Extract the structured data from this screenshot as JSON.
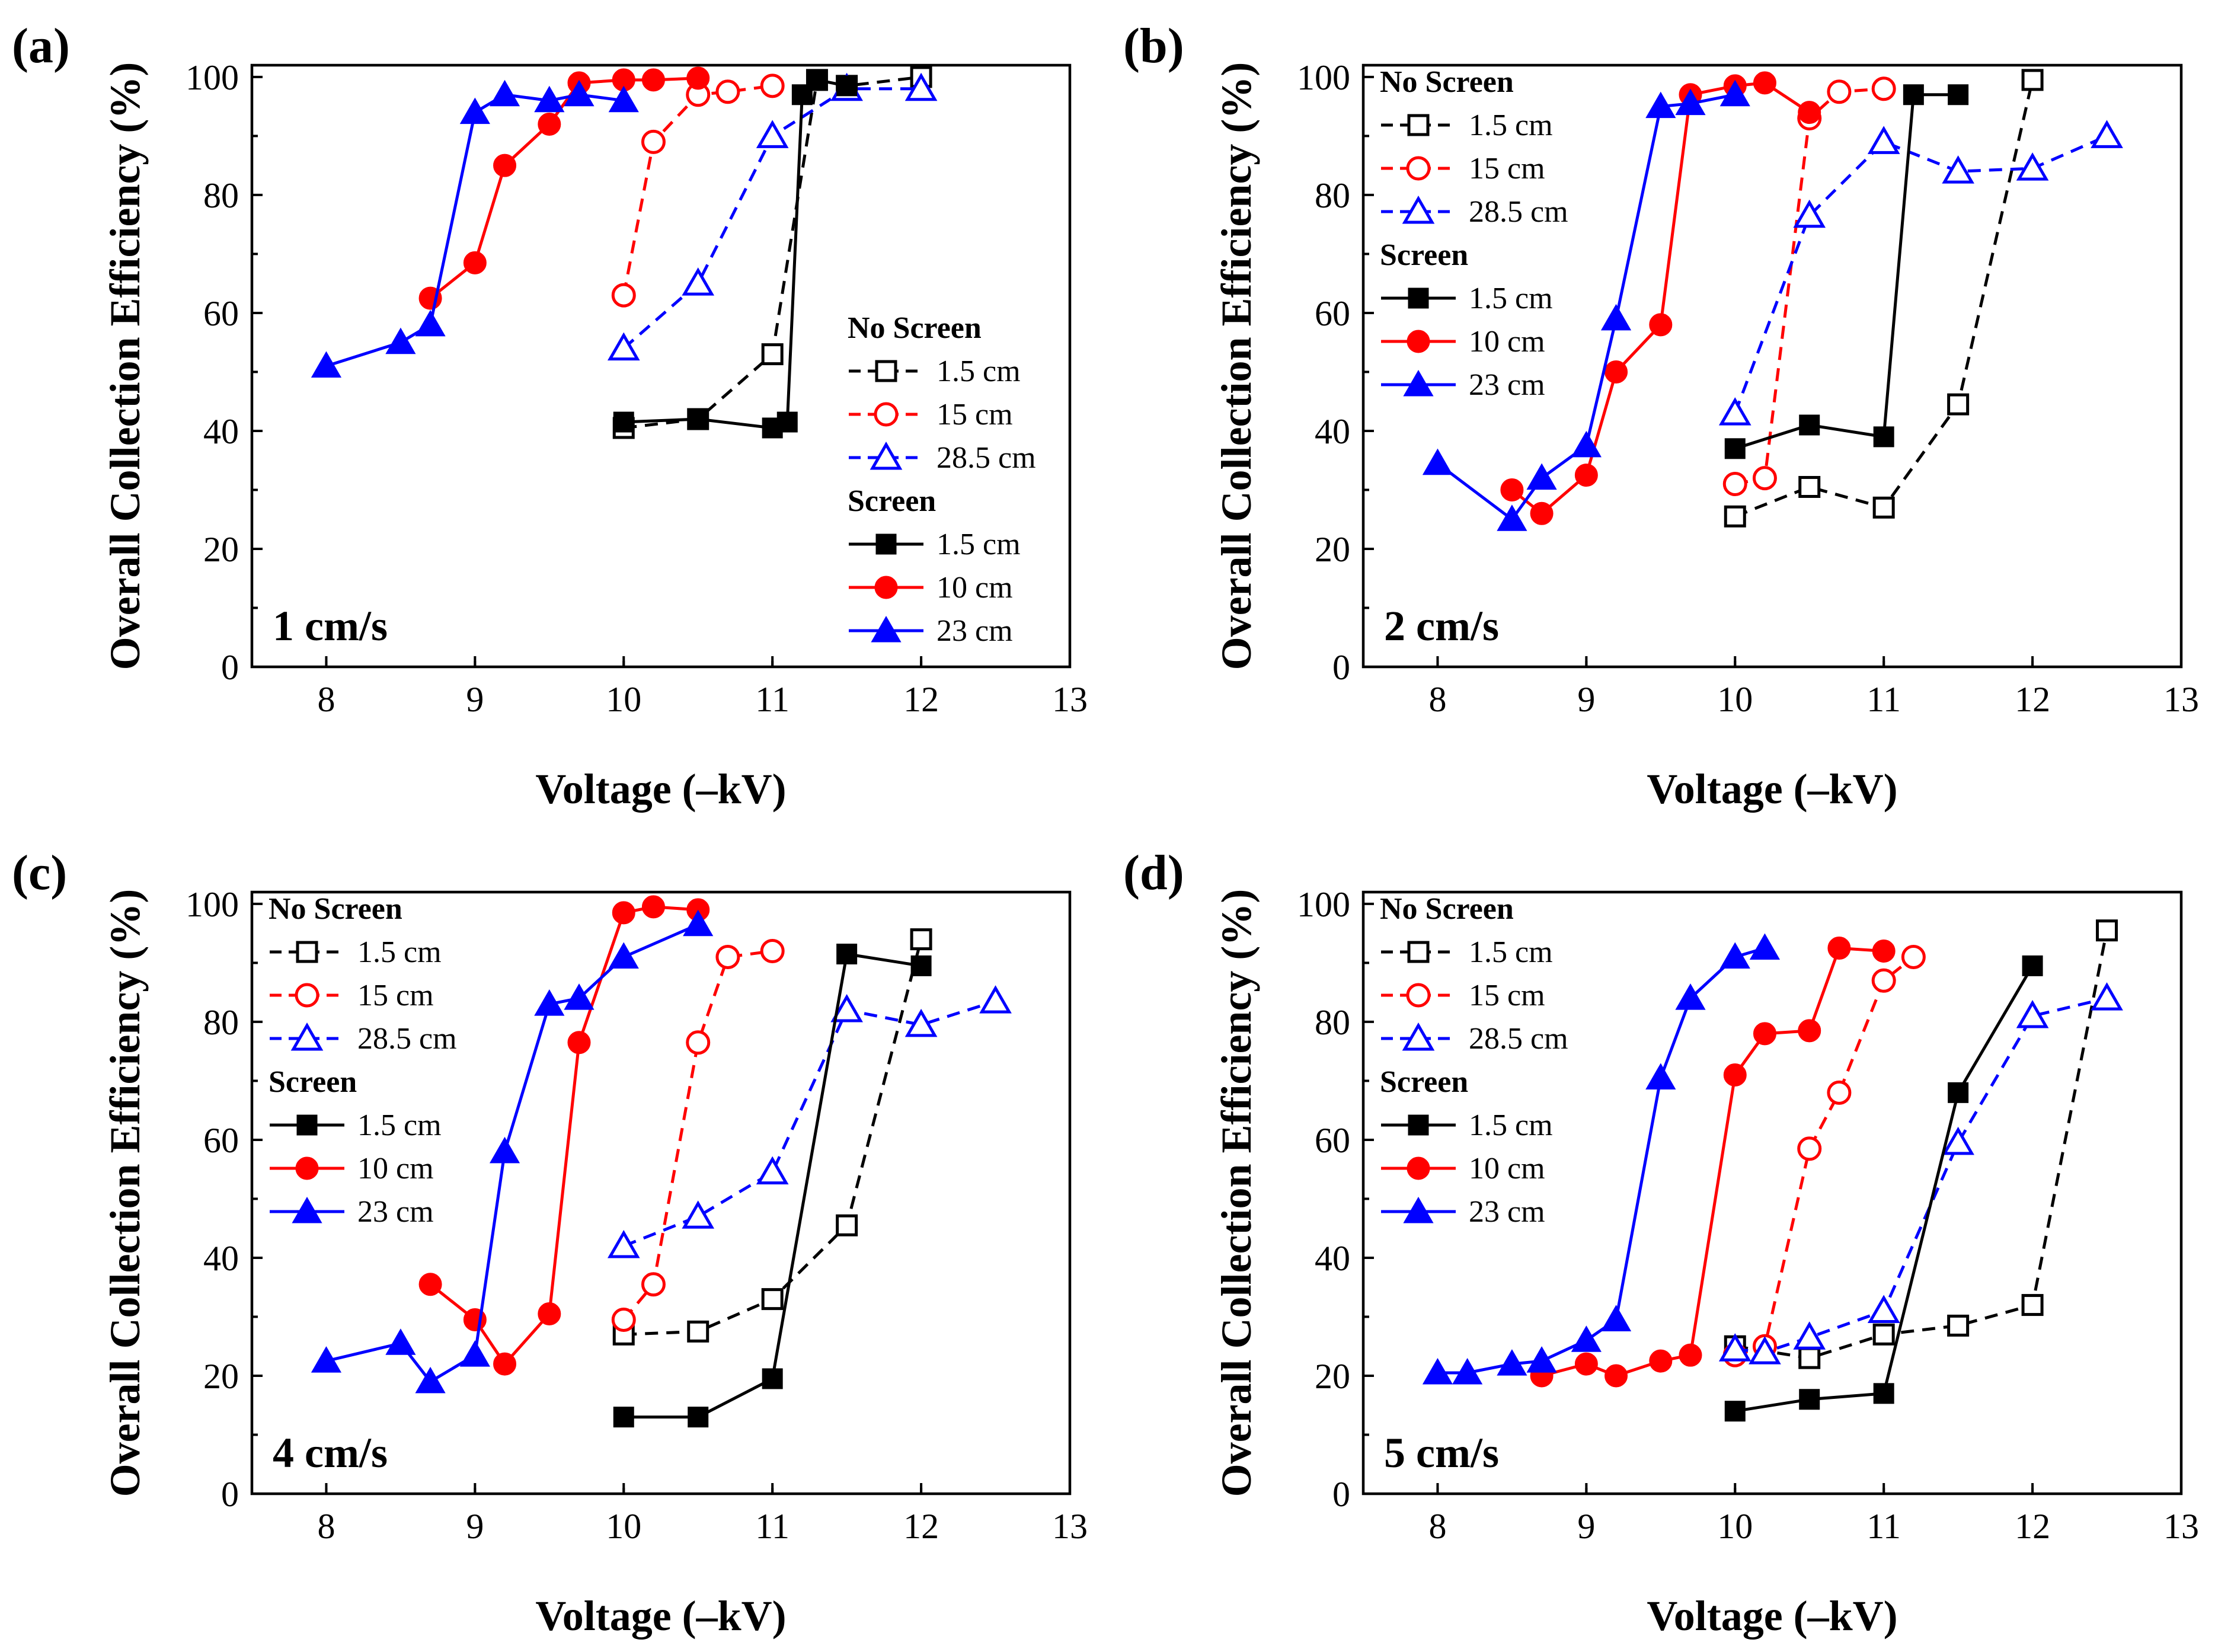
{
  "colors": {
    "black": "#000000",
    "red": "#ff0000",
    "blue": "#0000ff"
  },
  "legend_headings": {
    "no_screen": "No Screen",
    "screen": "Screen"
  },
  "chart_data": [
    {
      "type": "line",
      "panel": "(a)",
      "annotation": "1 cm/s",
      "xlabel": "Voltage (–kV)",
      "ylabel": "Overall Collection Efficiency (%)",
      "xlim": [
        7.5,
        13
      ],
      "ylim": [
        0,
        102
      ],
      "xticks": [
        8,
        9,
        10,
        11,
        12,
        13
      ],
      "yticks": [
        0,
        20,
        40,
        60,
        80,
        100
      ],
      "legend_position": "lower-right",
      "series": [
        {
          "name": "1.5 cm",
          "group": "No Screen",
          "color": "#000000",
          "marker": "square",
          "filled": false,
          "dashed": true,
          "x": [
            10.0,
            10.5,
            11.0,
            11.3,
            11.5,
            12.0
          ],
          "y": [
            40.5,
            42,
            53,
            99.5,
            98.5,
            100
          ]
        },
        {
          "name": "15 cm",
          "group": "No Screen",
          "color": "#ff0000",
          "marker": "circle",
          "filled": false,
          "dashed": true,
          "x": [
            10.0,
            10.2,
            10.5,
            10.7,
            11.0
          ],
          "y": [
            63,
            89,
            97,
            97.5,
            98.5
          ]
        },
        {
          "name": "28.5 cm",
          "group": "No Screen",
          "color": "#0000ff",
          "marker": "triangle",
          "filled": false,
          "dashed": true,
          "x": [
            10.0,
            10.5,
            11.0,
            11.5,
            12.0
          ],
          "y": [
            54,
            65,
            90,
            98,
            98
          ]
        },
        {
          "name": "1.5 cm",
          "group": "Screen",
          "color": "#000000",
          "marker": "square",
          "filled": true,
          "dashed": false,
          "x": [
            10.0,
            10.5,
            11.0,
            11.1,
            11.2,
            11.3,
            11.5
          ],
          "y": [
            41.5,
            42,
            40.5,
            41.5,
            97,
            99.5,
            98.5
          ]
        },
        {
          "name": "10 cm",
          "group": "Screen",
          "color": "#ff0000",
          "marker": "circle",
          "filled": true,
          "dashed": false,
          "x": [
            8.7,
            9.0,
            9.2,
            9.5,
            9.7,
            10.0,
            10.2,
            10.5
          ],
          "y": [
            62.5,
            68.5,
            85,
            92,
            99,
            99.5,
            99.5,
            99.8
          ]
        },
        {
          "name": "23 cm",
          "group": "Screen",
          "color": "#0000ff",
          "marker": "triangle",
          "filled": true,
          "dashed": false,
          "x": [
            8.0,
            8.5,
            8.7,
            9.0,
            9.2,
            9.5,
            9.7,
            10.0
          ],
          "y": [
            51,
            55,
            58,
            94,
            97,
            96,
            97,
            96
          ]
        }
      ]
    },
    {
      "type": "line",
      "panel": "(b)",
      "annotation": "2 cm/s",
      "xlabel": "Voltage (–kV)",
      "ylabel": "Overall Collection Efficiency (%)",
      "xlim": [
        7.5,
        13
      ],
      "ylim": [
        0,
        102
      ],
      "xticks": [
        8,
        9,
        10,
        11,
        12,
        13
      ],
      "yticks": [
        0,
        20,
        40,
        60,
        80,
        100
      ],
      "legend_position": "upper-left",
      "series": [
        {
          "name": "1.5 cm",
          "group": "No Screen",
          "color": "#000000",
          "marker": "square",
          "filled": false,
          "dashed": true,
          "x": [
            10.0,
            10.5,
            11.0,
            11.5,
            12.0
          ],
          "y": [
            25.5,
            30.5,
            27,
            44.5,
            99.5
          ]
        },
        {
          "name": "15 cm",
          "group": "No Screen",
          "color": "#ff0000",
          "marker": "circle",
          "filled": false,
          "dashed": true,
          "x": [
            10.0,
            10.2,
            10.5,
            10.7,
            11.0
          ],
          "y": [
            31,
            32,
            93,
            97.5,
            98
          ]
        },
        {
          "name": "28.5 cm",
          "group": "No Screen",
          "color": "#0000ff",
          "marker": "triangle",
          "filled": false,
          "dashed": true,
          "x": [
            10.0,
            10.5,
            11.0,
            11.5,
            12.0,
            12.5
          ],
          "y": [
            43,
            76.5,
            89,
            84,
            84.5,
            90
          ]
        },
        {
          "name": "1.5 cm",
          "group": "Screen",
          "color": "#000000",
          "marker": "square",
          "filled": true,
          "dashed": false,
          "x": [
            10.0,
            10.5,
            11.0,
            11.2,
            11.5
          ],
          "y": [
            37,
            41,
            39,
            97,
            97
          ]
        },
        {
          "name": "10 cm",
          "group": "Screen",
          "color": "#ff0000",
          "marker": "circle",
          "filled": true,
          "dashed": false,
          "x": [
            8.5,
            8.7,
            9.0,
            9.2,
            9.5,
            9.7,
            10.0,
            10.2,
            10.5
          ],
          "y": [
            30,
            26,
            32.5,
            50,
            58,
            97,
            98.5,
            99,
            94
          ]
        },
        {
          "name": "23 cm",
          "group": "Screen",
          "color": "#0000ff",
          "marker": "triangle",
          "filled": true,
          "dashed": false,
          "x": [
            8.0,
            8.5,
            8.7,
            9.0,
            9.2,
            9.5,
            9.7,
            10.0
          ],
          "y": [
            34.5,
            25,
            32,
            37.5,
            59,
            95,
            95.5,
            97
          ]
        }
      ]
    },
    {
      "type": "line",
      "panel": "(c)",
      "annotation": "4 cm/s",
      "xlabel": "Voltage (–kV)",
      "ylabel": "Overall Collection Efficiency (%)",
      "xlim": [
        7.5,
        13
      ],
      "ylim": [
        0,
        102
      ],
      "xticks": [
        8,
        9,
        10,
        11,
        12,
        13
      ],
      "yticks": [
        0,
        20,
        40,
        60,
        80,
        100
      ],
      "legend_position": "upper-left",
      "series": [
        {
          "name": "1.5 cm",
          "group": "No Screen",
          "color": "#000000",
          "marker": "square",
          "filled": false,
          "dashed": true,
          "x": [
            10.0,
            10.5,
            11.0,
            11.5,
            12.0
          ],
          "y": [
            27,
            27.5,
            33,
            45.5,
            94
          ]
        },
        {
          "name": "15 cm",
          "group": "No Screen",
          "color": "#ff0000",
          "marker": "circle",
          "filled": false,
          "dashed": true,
          "x": [
            10.0,
            10.2,
            10.5,
            10.7,
            11.0
          ],
          "y": [
            29.5,
            35.5,
            76.5,
            91,
            92
          ]
        },
        {
          "name": "28.5 cm",
          "group": "No Screen",
          "color": "#0000ff",
          "marker": "triangle",
          "filled": false,
          "dashed": true,
          "x": [
            10.0,
            10.5,
            11.0,
            11.5,
            12.0,
            12.5
          ],
          "y": [
            42,
            47,
            54.5,
            82,
            79.5,
            83.5
          ]
        },
        {
          "name": "1.5 cm",
          "group": "Screen",
          "color": "#000000",
          "marker": "square",
          "filled": true,
          "dashed": false,
          "x": [
            10.0,
            10.5,
            11.0,
            11.5,
            12.0
          ],
          "y": [
            13,
            13,
            19.5,
            91.5,
            89.5
          ]
        },
        {
          "name": "10 cm",
          "group": "Screen",
          "color": "#ff0000",
          "marker": "circle",
          "filled": true,
          "dashed": false,
          "x": [
            8.7,
            9.0,
            9.2,
            9.5,
            9.7,
            10.0,
            10.2,
            10.5
          ],
          "y": [
            35.5,
            29.5,
            22,
            30.5,
            76.5,
            98.5,
            99.5,
            99
          ]
        },
        {
          "name": "23 cm",
          "group": "Screen",
          "color": "#0000ff",
          "marker": "triangle",
          "filled": true,
          "dashed": false,
          "x": [
            8.0,
            8.5,
            8.7,
            9.0,
            9.2,
            9.5,
            9.7,
            10.0,
            10.5
          ],
          "y": [
            22.5,
            25.5,
            19,
            23.5,
            58,
            83,
            84,
            91,
            96.5
          ]
        }
      ]
    },
    {
      "type": "line",
      "panel": "(d)",
      "annotation": "5 cm/s",
      "xlabel": "Voltage (–kV)",
      "ylabel": "Overall Collection Efficiency (%)",
      "xlim": [
        7.5,
        13
      ],
      "ylim": [
        0,
        102
      ],
      "xticks": [
        8,
        9,
        10,
        11,
        12,
        13
      ],
      "yticks": [
        0,
        20,
        40,
        60,
        80,
        100
      ],
      "legend_position": "upper-left",
      "series": [
        {
          "name": "1.5 cm",
          "group": "No Screen",
          "color": "#000000",
          "marker": "square",
          "filled": false,
          "dashed": true,
          "x": [
            10.0,
            10.5,
            11.0,
            11.5,
            12.0,
            12.5
          ],
          "y": [
            25,
            23,
            27,
            28.5,
            32,
            95.5
          ]
        },
        {
          "name": "15 cm",
          "group": "No Screen",
          "color": "#ff0000",
          "marker": "circle",
          "filled": false,
          "dashed": true,
          "x": [
            10.0,
            10.2,
            10.5,
            10.7,
            11.0,
            11.2
          ],
          "y": [
            23.5,
            25,
            58.5,
            68,
            87,
            91
          ]
        },
        {
          "name": "28.5 cm",
          "group": "No Screen",
          "color": "#0000ff",
          "marker": "triangle",
          "filled": false,
          "dashed": true,
          "x": [
            10.0,
            10.2,
            10.5,
            11.0,
            11.5,
            12.0,
            12.5
          ],
          "y": [
            24.5,
            24,
            26.5,
            31,
            59.5,
            81,
            84
          ]
        },
        {
          "name": "1.5 cm",
          "group": "Screen",
          "color": "#000000",
          "marker": "square",
          "filled": true,
          "dashed": false,
          "x": [
            10.0,
            10.5,
            11.0,
            11.5,
            12.0
          ],
          "y": [
            14,
            16,
            17,
            68,
            89.5
          ]
        },
        {
          "name": "10 cm",
          "group": "Screen",
          "color": "#ff0000",
          "marker": "circle",
          "filled": true,
          "dashed": false,
          "x": [
            8.7,
            9.0,
            9.2,
            9.5,
            9.7,
            10.0,
            10.2,
            10.5,
            10.7,
            11.0
          ],
          "y": [
            20,
            22,
            20,
            22.5,
            23.5,
            71,
            78,
            78.5,
            92.5,
            92
          ]
        },
        {
          "name": "23 cm",
          "group": "Screen",
          "color": "#0000ff",
          "marker": "triangle",
          "filled": true,
          "dashed": false,
          "x": [
            8.0,
            8.2,
            8.5,
            8.7,
            9.0,
            9.2,
            9.5,
            9.7,
            10.0,
            10.2
          ],
          "y": [
            20.5,
            20.5,
            22,
            22.5,
            26,
            29.5,
            70.5,
            84,
            91,
            92.5
          ]
        }
      ]
    }
  ]
}
